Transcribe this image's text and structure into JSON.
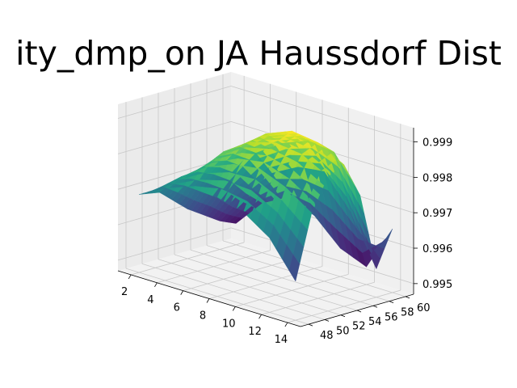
{
  "chart_data": {
    "type": "surface3d",
    "title": "ity_dmp_on JA Haussdorf Dist",
    "xlabel": "",
    "ylabel": "",
    "zlabel": "",
    "x_ticks": [
      2,
      4,
      6,
      8,
      10,
      12,
      14
    ],
    "y_ticks": [
      48,
      50,
      52,
      54,
      56,
      58,
      60
    ],
    "z_ticks": [
      "0.995",
      "0.996",
      "0.997",
      "0.998",
      "0.999"
    ],
    "xlim": [
      1,
      15
    ],
    "ylim": [
      47,
      61
    ],
    "zlim": [
      0.9947,
      0.9994
    ],
    "x": [
      2,
      4,
      6,
      8,
      10,
      12,
      14
    ],
    "y": [
      48,
      50,
      52,
      54,
      56,
      58,
      60
    ],
    "z": [
      [
        0.9969,
        0.9972,
        0.9974,
        0.9975,
        0.9973,
        0.9968,
        0.9958
      ],
      [
        0.9969,
        0.9975,
        0.998,
        0.9983,
        0.9984,
        0.9981,
        0.9976
      ],
      [
        0.9965,
        0.9975,
        0.9983,
        0.9988,
        0.999,
        0.9989,
        0.9985
      ],
      [
        0.9961,
        0.9973,
        0.9983,
        0.9989,
        0.9992,
        0.9991,
        0.9987
      ],
      [
        0.9958,
        0.997,
        0.998,
        0.9985,
        0.9988,
        0.9987,
        0.9977
      ],
      [
        0.9955,
        0.9965,
        0.9973,
        0.9977,
        0.9978,
        0.9969,
        0.9955
      ],
      [
        0.9953,
        0.9961,
        0.9965,
        0.9962,
        0.9955,
        0.9952,
        0.9965
      ]
    ],
    "colormap": "viridis",
    "grid": true
  }
}
